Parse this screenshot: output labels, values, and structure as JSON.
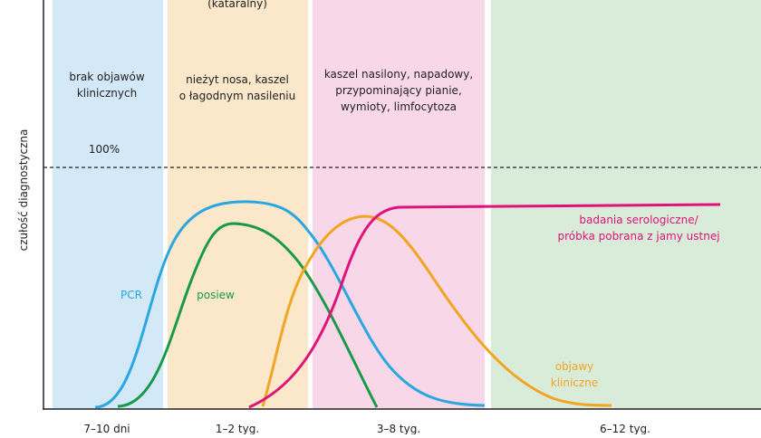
{
  "phases": [
    {
      "description": [
        "brak objawów",
        "klinicznych"
      ],
      "duration": "7–10 dni"
    },
    {
      "name": "(kataralny)",
      "description": [
        "nieżyt nosa, kaszel",
        "o łagodnym nasileniu"
      ],
      "duration": "1–2 tyg."
    },
    {
      "description": [
        "kaszel nasilony, napadowy,",
        "przypominający pianie,",
        "wymioty, limfocytoza"
      ],
      "duration": "3–8 tyg."
    },
    {
      "description": [],
      "duration": "6–12 tyg."
    }
  ],
  "y_axis_label": "czułość diagnostyczna",
  "threshold_label": "100%",
  "curves": [
    {
      "label": [
        "PCR"
      ]
    },
    {
      "label": [
        "posiew"
      ]
    },
    {
      "label": [
        "badania serologiczne/",
        "próbka pobrana z jamy ustnej"
      ]
    },
    {
      "label": [
        "objawy",
        "kliniczne"
      ]
    }
  ]
}
